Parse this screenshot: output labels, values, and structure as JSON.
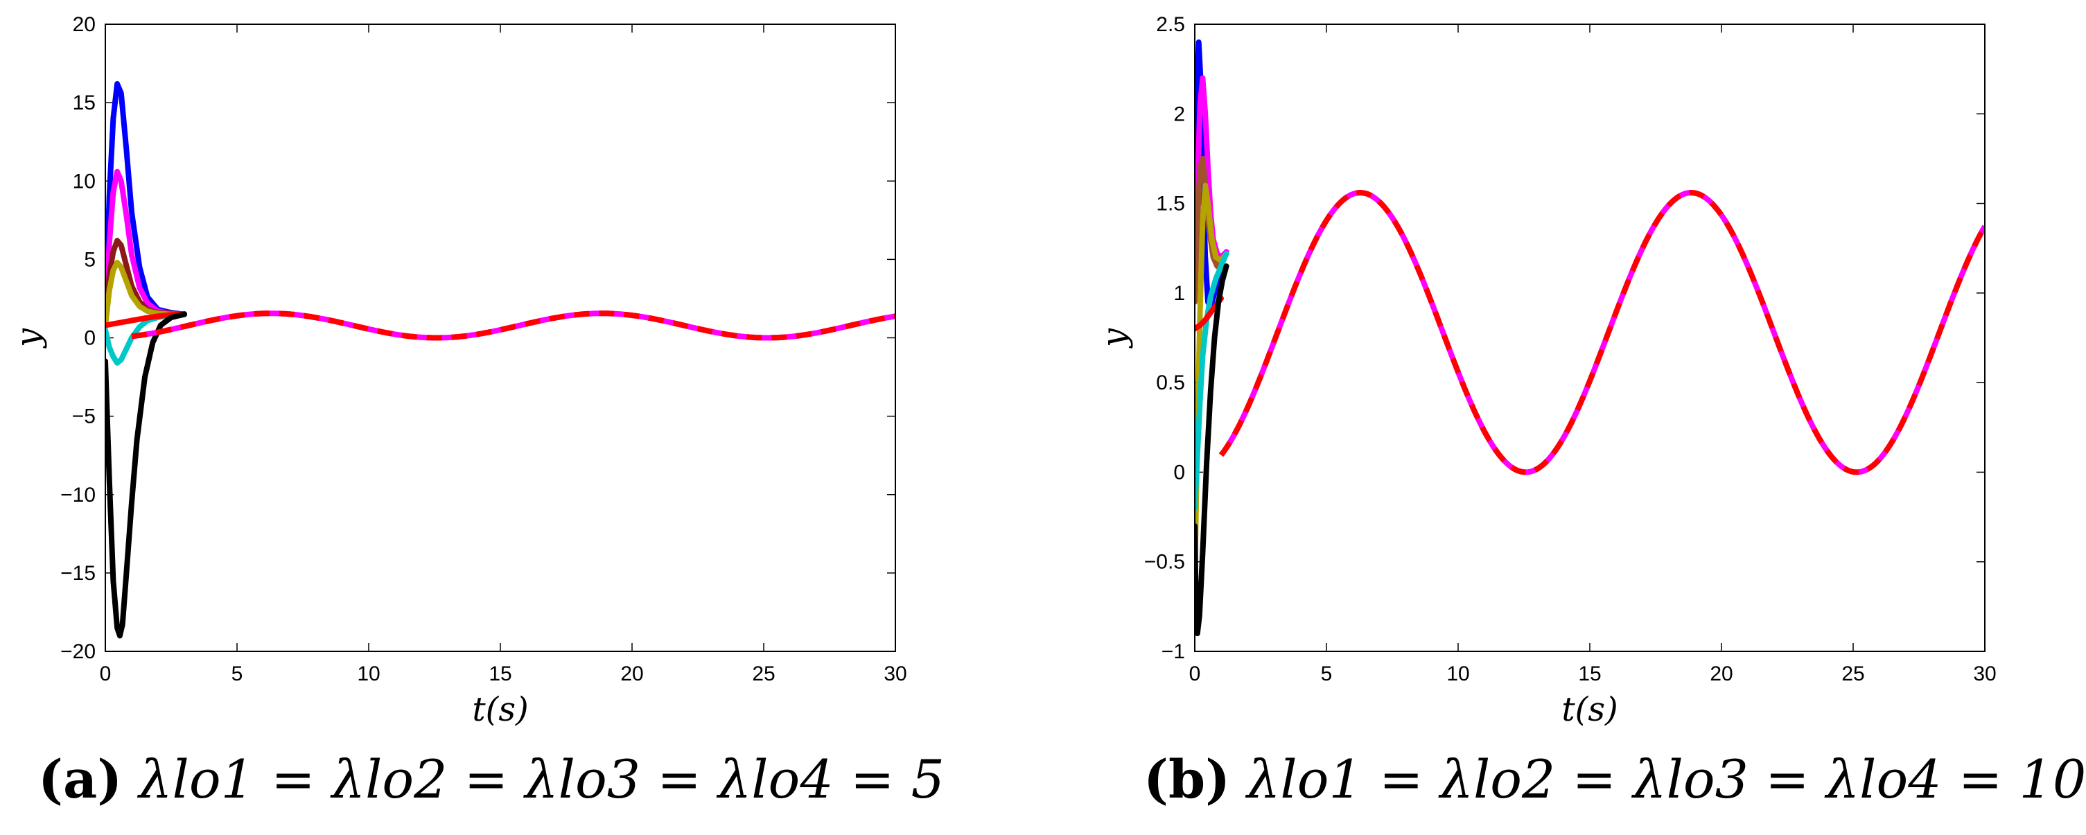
{
  "figure": {
    "panels": [
      {
        "id": "a",
        "caption_label": "(a)",
        "caption_math": "λlo1 = λlo2 = λlo3 = λlo4 = 5"
      },
      {
        "id": "b",
        "caption_label": "(b)",
        "caption_math": "λlo1 = λlo2 = λlo3 = λlo4 = 10"
      }
    ]
  },
  "chart_data": [
    {
      "type": "line",
      "title": "",
      "xlabel": "t(s)",
      "ylabel": "y",
      "xlim": [
        0,
        30
      ],
      "ylim": [
        -20,
        20
      ],
      "xticks": [
        0,
        5,
        10,
        15,
        20,
        25,
        30
      ],
      "yticks": [
        -20,
        -15,
        -10,
        -5,
        0,
        5,
        10,
        15,
        20
      ],
      "xtick_labels": [
        "0",
        "5",
        "10",
        "15",
        "20",
        "25",
        "30"
      ],
      "ytick_labels": [
        "−20",
        "−15",
        "−10",
        "−5",
        "0",
        "5",
        "10",
        "15",
        "20"
      ],
      "grid": false,
      "steady_state": "y = 0.78 - 0.78*cos(0.5*t)",
      "series": [
        {
          "name": "blue",
          "color": "#0000ff",
          "points": [
            [
              0,
              1.2
            ],
            [
              0.15,
              9
            ],
            [
              0.3,
              14
            ],
            [
              0.45,
              16.2
            ],
            [
              0.6,
              15.6
            ],
            [
              0.8,
              12
            ],
            [
              1.0,
              8
            ],
            [
              1.3,
              4.5
            ],
            [
              1.6,
              2.6
            ],
            [
              2.0,
              1.8
            ],
            [
              2.5,
              1.6
            ],
            [
              3.0,
              1.5
            ]
          ]
        },
        {
          "name": "magenta",
          "color": "#ff00ff",
          "points": [
            [
              0,
              1.0
            ],
            [
              0.15,
              6
            ],
            [
              0.3,
              9.3
            ],
            [
              0.45,
              10.6
            ],
            [
              0.6,
              10
            ],
            [
              0.8,
              7.8
            ],
            [
              1.0,
              5.3
            ],
            [
              1.3,
              3.2
            ],
            [
              1.6,
              2.2
            ],
            [
              2.0,
              1.7
            ],
            [
              2.5,
              1.55
            ],
            [
              3.0,
              1.5
            ]
          ]
        },
        {
          "name": "brown",
          "color": "#8b1a1a",
          "points": [
            [
              0,
              1.0
            ],
            [
              0.15,
              4
            ],
            [
              0.3,
              5.5
            ],
            [
              0.45,
              6.2
            ],
            [
              0.6,
              5.9
            ],
            [
              0.8,
              4.6
            ],
            [
              1.0,
              3.3
            ],
            [
              1.3,
              2.3
            ],
            [
              1.6,
              1.8
            ],
            [
              2.0,
              1.6
            ],
            [
              2.5,
              1.55
            ],
            [
              3.0,
              1.5
            ]
          ]
        },
        {
          "name": "olive",
          "color": "#b5a300",
          "points": [
            [
              0,
              0.8
            ],
            [
              0.15,
              3
            ],
            [
              0.3,
              4.3
            ],
            [
              0.45,
              4.8
            ],
            [
              0.6,
              4.5
            ],
            [
              0.8,
              3.6
            ],
            [
              1.0,
              2.7
            ],
            [
              1.3,
              2.0
            ],
            [
              1.6,
              1.7
            ],
            [
              2.0,
              1.55
            ],
            [
              2.5,
              1.5
            ],
            [
              3.0,
              1.5
            ]
          ]
        },
        {
          "name": "cyan",
          "color": "#00c8c8",
          "points": [
            [
              0,
              0.5
            ],
            [
              0.15,
              -0.6
            ],
            [
              0.3,
              -1.2
            ],
            [
              0.45,
              -1.6
            ],
            [
              0.6,
              -1.4
            ],
            [
              0.8,
              -0.7
            ],
            [
              1.0,
              0.0
            ],
            [
              1.3,
              0.7
            ],
            [
              1.6,
              1.1
            ],
            [
              2.0,
              1.3
            ],
            [
              2.5,
              1.45
            ],
            [
              3.0,
              1.5
            ]
          ]
        },
        {
          "name": "red",
          "color": "#ff0000",
          "points": [
            [
              0,
              0.8
            ],
            [
              0.5,
              0.95
            ],
            [
              1.0,
              1.1
            ],
            [
              1.5,
              1.25
            ],
            [
              2.0,
              1.38
            ],
            [
              2.5,
              1.47
            ],
            [
              3.0,
              1.53
            ]
          ]
        },
        {
          "name": "black",
          "color": "#000000",
          "points": [
            [
              0,
              -1.5
            ],
            [
              0.15,
              -9
            ],
            [
              0.3,
              -15.5
            ],
            [
              0.45,
              -18.5
            ],
            [
              0.55,
              -19
            ],
            [
              0.65,
              -18.3
            ],
            [
              0.8,
              -15
            ],
            [
              1.0,
              -10.5
            ],
            [
              1.2,
              -6.5
            ],
            [
              1.5,
              -2.5
            ],
            [
              1.8,
              -0.3
            ],
            [
              2.1,
              0.8
            ],
            [
              2.5,
              1.3
            ],
            [
              3.0,
              1.5
            ]
          ]
        }
      ]
    },
    {
      "type": "line",
      "title": "",
      "xlabel": "t(s)",
      "ylabel": "y",
      "xlim": [
        0,
        30
      ],
      "ylim": [
        -1,
        2.5
      ],
      "xticks": [
        0,
        5,
        10,
        15,
        20,
        25,
        30
      ],
      "yticks": [
        -1,
        -0.5,
        0,
        0.5,
        1,
        1.5,
        2,
        2.5
      ],
      "xtick_labels": [
        "0",
        "5",
        "10",
        "15",
        "20",
        "25",
        "30"
      ],
      "ytick_labels": [
        "−1",
        "−0.5",
        "0",
        "0.5",
        "1",
        "1.5",
        "2",
        "2.5"
      ],
      "grid": false,
      "steady_state": "y = 0.78 - 0.78*cos(0.5*t)",
      "series": [
        {
          "name": "blue",
          "color": "#0000ff",
          "points": [
            [
              0,
              1.2
            ],
            [
              0.08,
              2.1
            ],
            [
              0.15,
              2.4
            ],
            [
              0.22,
              2.2
            ],
            [
              0.3,
              1.7
            ],
            [
              0.4,
              1.2
            ],
            [
              0.5,
              0.95
            ],
            [
              0.6,
              0.92
            ],
            [
              0.75,
              1.0
            ],
            [
              0.9,
              1.1
            ],
            [
              1.1,
              1.2
            ]
          ]
        },
        {
          "name": "magenta",
          "color": "#ff00ff",
          "points": [
            [
              0,
              1.0
            ],
            [
              0.1,
              1.6
            ],
            [
              0.2,
              2.05
            ],
            [
              0.3,
              2.2
            ],
            [
              0.4,
              2.0
            ],
            [
              0.5,
              1.7
            ],
            [
              0.6,
              1.45
            ],
            [
              0.7,
              1.3
            ],
            [
              0.85,
              1.22
            ],
            [
              1.0,
              1.2
            ],
            [
              1.2,
              1.23
            ]
          ]
        },
        {
          "name": "brown",
          "color": "#a0522d",
          "points": [
            [
              0,
              0.95
            ],
            [
              0.1,
              1.4
            ],
            [
              0.2,
              1.7
            ],
            [
              0.3,
              1.75
            ],
            [
              0.4,
              1.6
            ],
            [
              0.55,
              1.35
            ],
            [
              0.7,
              1.2
            ],
            [
              0.85,
              1.15
            ],
            [
              1.0,
              1.17
            ],
            [
              1.2,
              1.22
            ]
          ]
        },
        {
          "name": "olive",
          "color": "#b5a300",
          "points": [
            [
              0,
              -0.6
            ],
            [
              0.1,
              0.2
            ],
            [
              0.2,
              0.9
            ],
            [
              0.3,
              1.4
            ],
            [
              0.4,
              1.6
            ],
            [
              0.5,
              1.5
            ],
            [
              0.65,
              1.3
            ],
            [
              0.8,
              1.2
            ],
            [
              1.0,
              1.18
            ],
            [
              1.2,
              1.22
            ]
          ]
        },
        {
          "name": "cyan",
          "color": "#00c8c8",
          "points": [
            [
              0,
              -0.2
            ],
            [
              0.1,
              0.1
            ],
            [
              0.2,
              0.4
            ],
            [
              0.3,
              0.65
            ],
            [
              0.45,
              0.85
            ],
            [
              0.6,
              0.98
            ],
            [
              0.8,
              1.08
            ],
            [
              1.0,
              1.15
            ],
            [
              1.2,
              1.22
            ]
          ]
        },
        {
          "name": "red",
          "color": "#ff0000",
          "points": [
            [
              0,
              0.8
            ],
            [
              0.2,
              0.82
            ],
            [
              0.4,
              0.85
            ],
            [
              0.6,
              0.89
            ],
            [
              0.8,
              0.93
            ],
            [
              1.0,
              0.97
            ]
          ]
        },
        {
          "name": "black",
          "color": "#000000",
          "points": [
            [
              0,
              -0.3
            ],
            [
              0.05,
              -0.8
            ],
            [
              0.1,
              -0.9
            ],
            [
              0.18,
              -0.8
            ],
            [
              0.3,
              -0.45
            ],
            [
              0.45,
              0.05
            ],
            [
              0.6,
              0.45
            ],
            [
              0.75,
              0.75
            ],
            [
              0.9,
              0.95
            ],
            [
              1.05,
              1.07
            ],
            [
              1.2,
              1.15
            ]
          ]
        }
      ]
    }
  ]
}
